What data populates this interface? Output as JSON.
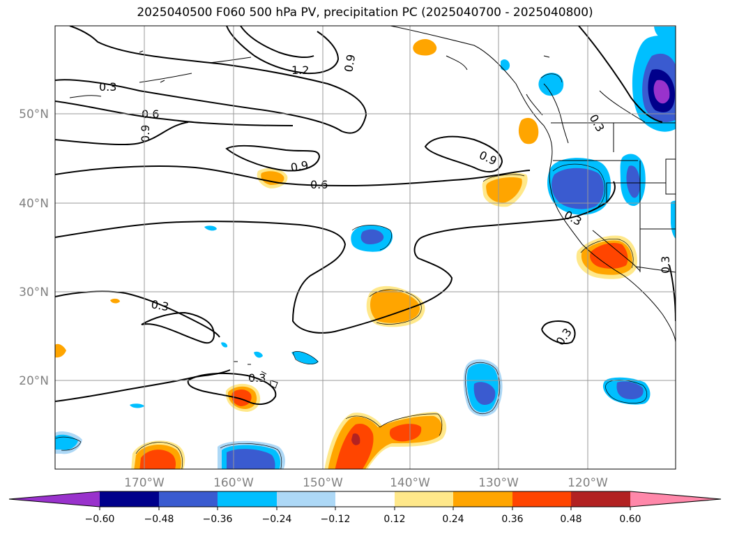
{
  "title": "2025040500 F060 500 hPa PV, precipitation PC (2025040700 - 2025040800)",
  "lon_labels": [
    "170°W",
    "160°W",
    "150°W",
    "140°W",
    "130°W",
    "120°W"
  ],
  "lat_labels": [
    "50°N",
    "40°N",
    "30°N",
    "20°N"
  ],
  "contour_labels": [
    "1.2",
    "0.9",
    "0.3",
    "0.6",
    "0.9",
    "0.9",
    "0.9",
    "0.6",
    "0.3",
    "0.3",
    "0.3",
    "0.3",
    "0.3",
    "0.3"
  ],
  "colorbar": {
    "tick_labels": [
      "−0.60",
      "−0.48",
      "−0.36",
      "−0.24",
      "−0.12",
      "0.12",
      "0.24",
      "0.36",
      "0.48",
      "0.60"
    ],
    "colors": [
      "#9932cc",
      "#00008b",
      "#3a5bd0",
      "#00bfff",
      "#add8f6",
      "#ffffff",
      "#ffe88a",
      "#ffa500",
      "#ff4500",
      "#b22222",
      "#ff88aa"
    ]
  }
}
